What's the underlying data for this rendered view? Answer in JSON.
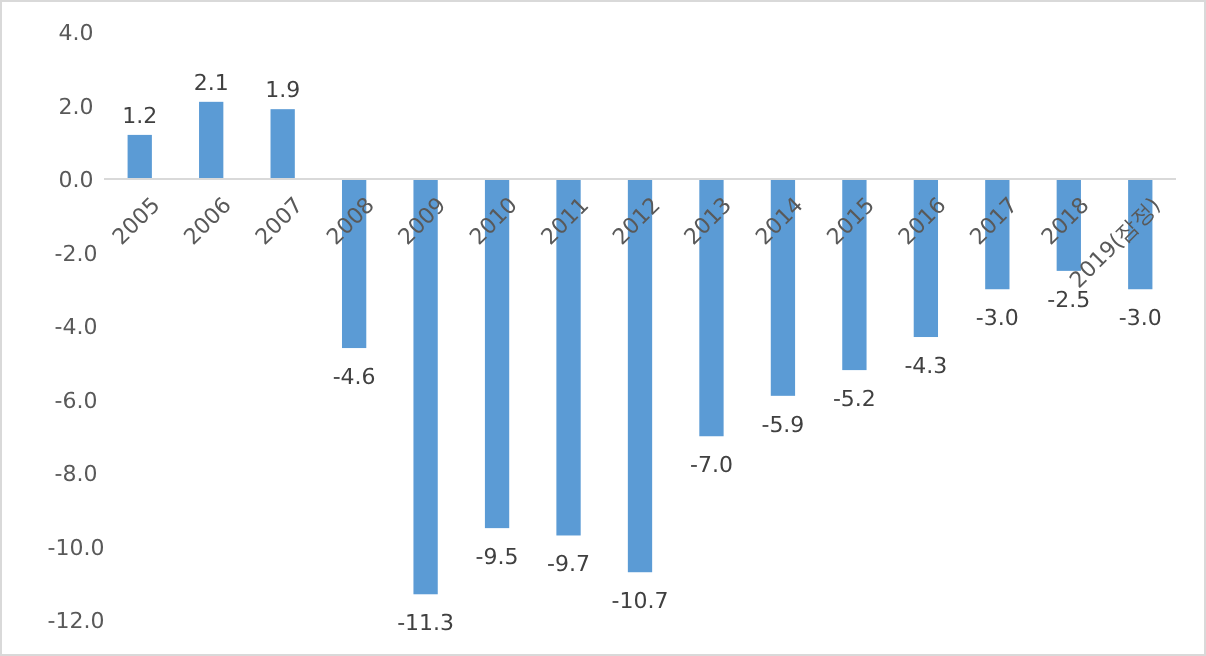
{
  "chart_data": {
    "type": "bar",
    "categories": [
      "2005",
      "2006",
      "2007",
      "2008",
      "2009",
      "2010",
      "2011",
      "2012",
      "2013",
      "2014",
      "2015",
      "2016",
      "2017",
      "2018",
      "2019(잠정)"
    ],
    "values": [
      1.2,
      2.1,
      1.9,
      -4.6,
      -11.3,
      -9.5,
      -9.7,
      -10.7,
      -7.0,
      -5.9,
      -5.2,
      -4.3,
      -3.0,
      -2.5,
      -3.0
    ],
    "value_labels": [
      "1.2",
      "2.1",
      "1.9",
      "-4.6",
      "-11.3",
      "-9.5",
      "-9.7",
      "-10.7",
      "-7.0",
      "-5.9",
      "-5.2",
      "-4.3",
      "-3.0",
      "-2.5",
      "-3.0"
    ],
    "color": "#5b9bd5",
    "ylim": [
      -12,
      4
    ],
    "yticks": [
      {
        "value": 4,
        "label": "4.0"
      },
      {
        "value": 2,
        "label": "2.0"
      },
      {
        "value": 0,
        "label": "0.0"
      },
      {
        "value": -2,
        "label": "-2.0"
      },
      {
        "value": -4,
        "label": "-4.0"
      },
      {
        "value": -6,
        "label": "-6.0"
      },
      {
        "value": -8,
        "label": "-8.0"
      },
      {
        "value": -10,
        "label": "-10.0"
      },
      {
        "value": -12,
        "label": "-12.0"
      }
    ],
    "grid": false
  }
}
